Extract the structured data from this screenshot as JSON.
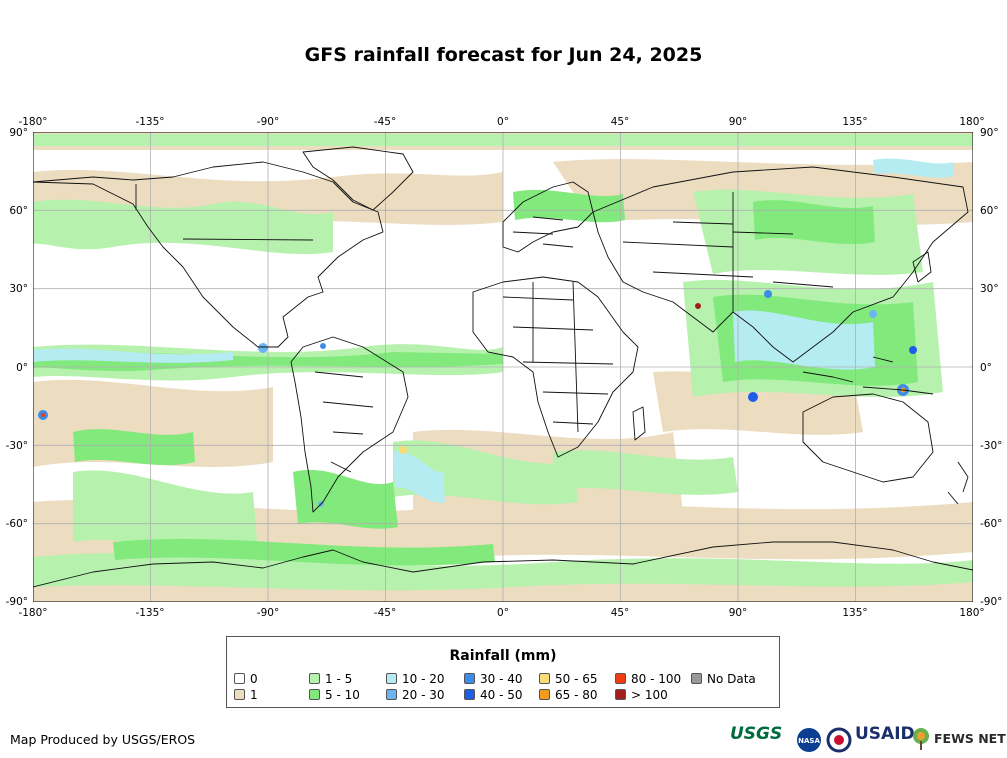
{
  "title": "GFS rainfall forecast for Jun 24, 2025",
  "map": {
    "projection": "equirectangular",
    "longitude_ticks": [
      "-180°",
      "-135°",
      "-90°",
      "-45°",
      "0°",
      "45°",
      "90°",
      "135°",
      "180°"
    ],
    "latitude_ticks": [
      "90°",
      "60°",
      "30°",
      "0°",
      "-30°",
      "-60°",
      "-90°"
    ],
    "grid": "on",
    "colors": {
      "ocean_background": "#ffffff",
      "trace_1mm": "#ecdcc0",
      "light_1_5": "#b6f2ae",
      "moderate_5_10": "#82ea7c",
      "rain_10_20": "#b4ecf2",
      "rain_20_30": "#6cb4f0",
      "rain_30_40": "#3c8ce8",
      "rain_40_50": "#1e5ee6",
      "rain_50_65": "#f8dc78",
      "rain_65_80": "#f49c1c",
      "rain_80_100": "#f03c10",
      "rain_over_100": "#a01e1e",
      "borders": "#111111",
      "gridlines": "#b0b0b0"
    }
  },
  "legend": {
    "title": "Rainfall (mm)",
    "items": [
      {
        "label": "0",
        "color": "#ffffff"
      },
      {
        "label": "1",
        "color": "#ecdcc0"
      },
      {
        "label": "1 - 5",
        "color": "#b6f2ae"
      },
      {
        "label": "5 - 10",
        "color": "#82ea7c"
      },
      {
        "label": "10 - 20",
        "color": "#b4ecf2"
      },
      {
        "label": "20 - 30",
        "color": "#6cb4f0"
      },
      {
        "label": "30 - 40",
        "color": "#3c8ce8"
      },
      {
        "label": "40 - 50",
        "color": "#1e5ee6"
      },
      {
        "label": "50 - 65",
        "color": "#f8dc78"
      },
      {
        "label": "65 - 80",
        "color": "#f49c1c"
      },
      {
        "label": "80 - 100",
        "color": "#f03c10"
      },
      {
        "label": "> 100",
        "color": "#a01e1e"
      },
      {
        "label": "No Data",
        "color": "#999999"
      }
    ]
  },
  "footer": {
    "credit": "Map Produced by USGS/EROS",
    "logos": [
      {
        "name": "USGS",
        "color": "#006b3f"
      },
      {
        "name": "NASA",
        "color": "#0b3d91"
      },
      {
        "name": "USAID",
        "color": "#1b2f6b"
      },
      {
        "name": "FEWS NET",
        "color": "#2a2a2a"
      }
    ]
  }
}
